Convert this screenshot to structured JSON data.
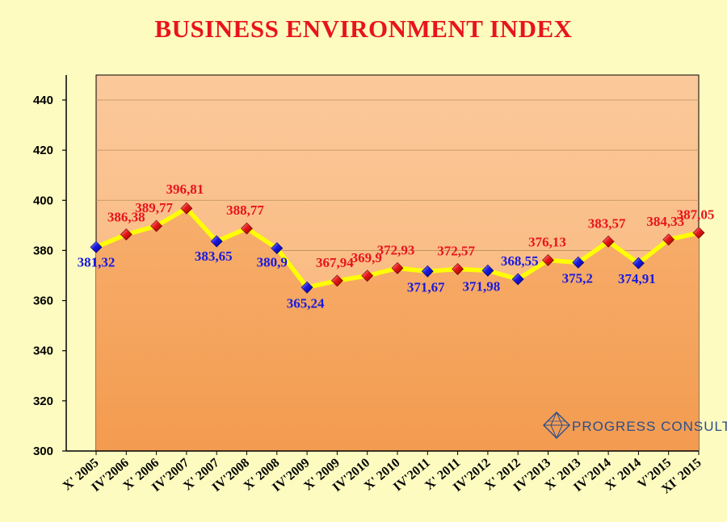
{
  "chart_data": {
    "type": "line",
    "title": "BUSINESS ENVIRONMENT INDEX",
    "xlabel": "",
    "ylabel": "",
    "ylim": [
      300,
      440
    ],
    "yticks": [
      "300",
      "320",
      "340",
      "360",
      "380",
      "400",
      "420",
      "440"
    ],
    "categories": [
      "X' 2005",
      "IV'2006",
      "X' 2006",
      "IV'2007",
      "X' 2007",
      "IV'2008",
      "X' 2008",
      "IV'2009",
      "X' 2009",
      "IV'2010",
      "X' 2010",
      "IV'2011",
      "X' 2011",
      "IV'2012",
      "X' 2012",
      "IV'2013",
      "X' 2013",
      "IV'2014",
      "X' 2014",
      "V'2015",
      "XI' 2015"
    ],
    "values": [
      381.32,
      386.38,
      389.77,
      396.81,
      383.65,
      388.77,
      380.9,
      365.24,
      367.94,
      369.9,
      372.93,
      371.67,
      372.57,
      371.98,
      368.55,
      376.13,
      375.2,
      383.57,
      374.91,
      384.33,
      387.05
    ],
    "value_labels": [
      "381,32",
      "386,38",
      "389,77",
      "396,81",
      "383,65",
      "388,77",
      "380,9",
      "365,24",
      "367,94",
      "369,9",
      "372,93",
      "371,67",
      "372,57",
      "371,98",
      "368,55",
      "376,13",
      "375,2",
      "383,57",
      "374,91",
      "384,33",
      "387,05"
    ],
    "marker_colors": [
      "blue",
      "red",
      "red",
      "red",
      "blue",
      "red",
      "blue",
      "blue",
      "red",
      "red",
      "red",
      "blue",
      "red",
      "blue",
      "blue",
      "red",
      "blue",
      "red",
      "blue",
      "red",
      "red"
    ],
    "grid": true,
    "watermark": "PROGRESS CONSULT",
    "colors": {
      "title": "#e8141c",
      "label_red": "#e8141c",
      "label_blue": "#1a1adc",
      "line": "#ffff00",
      "area_fill": "#f5a55e",
      "plot_bg": "#fcc896",
      "page_bg": "#fdfbc0"
    }
  }
}
